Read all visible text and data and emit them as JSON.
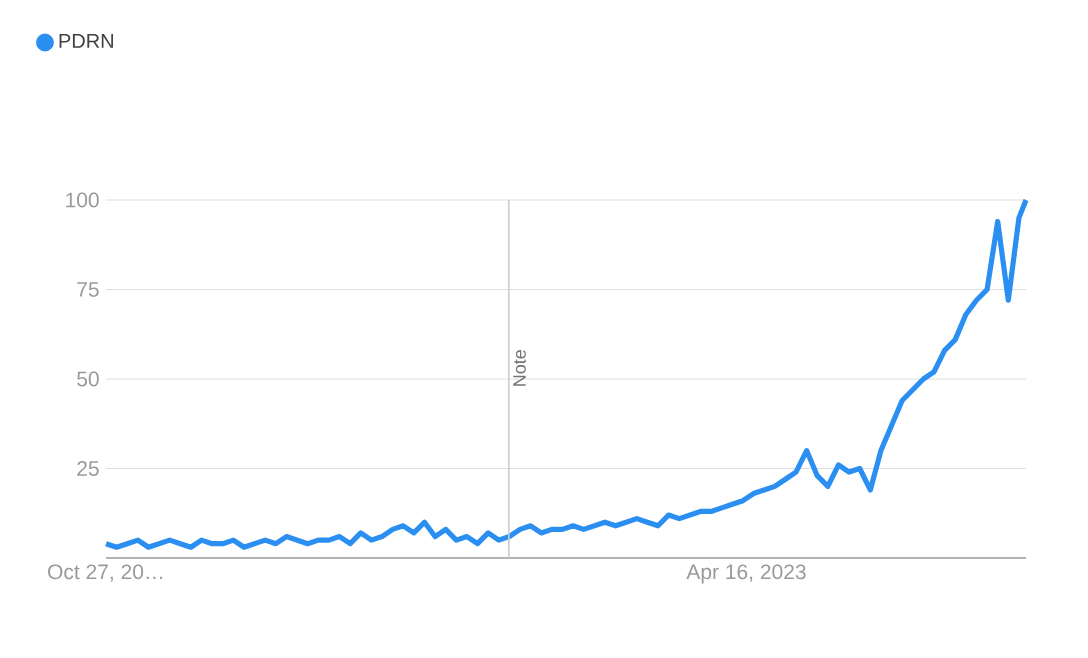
{
  "chart_data": {
    "type": "line",
    "x": [
      "2019-10-27",
      "2019-11-17",
      "2019-12-08",
      "2019-12-29",
      "2020-01-19",
      "2020-02-09",
      "2020-03-01",
      "2020-03-22",
      "2020-04-12",
      "2020-05-03",
      "2020-05-24",
      "2020-06-14",
      "2020-07-05",
      "2020-07-26",
      "2020-08-16",
      "2020-09-06",
      "2020-09-27",
      "2020-10-18",
      "2020-11-08",
      "2020-11-29",
      "2020-12-20",
      "2021-01-10",
      "2021-01-31",
      "2021-02-21",
      "2021-03-14",
      "2021-04-04",
      "2021-04-25",
      "2021-05-16",
      "2021-06-06",
      "2021-06-27",
      "2021-07-18",
      "2021-08-08",
      "2021-08-29",
      "2021-09-19",
      "2021-10-10",
      "2021-10-31",
      "2021-11-21",
      "2021-12-12",
      "2022-01-02",
      "2022-01-23",
      "2022-02-13",
      "2022-03-06",
      "2022-03-27",
      "2022-04-17",
      "2022-05-08",
      "2022-05-29",
      "2022-06-19",
      "2022-07-10",
      "2022-07-31",
      "2022-08-21",
      "2022-09-11",
      "2022-10-02",
      "2022-10-23",
      "2022-11-13",
      "2022-12-04",
      "2022-12-25",
      "2023-01-15",
      "2023-02-05",
      "2023-02-26",
      "2023-03-19",
      "2023-04-09",
      "2023-04-30",
      "2023-05-21",
      "2023-06-11",
      "2023-07-02",
      "2023-07-23",
      "2023-08-13",
      "2023-09-03",
      "2023-09-24",
      "2023-10-15",
      "2023-11-05",
      "2023-11-26",
      "2023-12-17",
      "2024-01-07",
      "2024-01-28",
      "2024-02-18",
      "2024-03-10",
      "2024-03-31",
      "2024-04-21",
      "2024-05-12",
      "2024-06-02",
      "2024-06-23",
      "2024-07-14",
      "2024-08-04",
      "2024-08-25",
      "2024-09-15",
      "2024-10-06",
      "2024-10-20"
    ],
    "series": [
      {
        "name": "PDRN",
        "color": "#2a8ff0",
        "values": [
          4,
          3,
          4,
          5,
          3,
          4,
          5,
          4,
          3,
          5,
          4,
          4,
          5,
          3,
          4,
          5,
          4,
          6,
          5,
          4,
          5,
          5,
          6,
          4,
          7,
          5,
          6,
          8,
          9,
          7,
          10,
          6,
          8,
          5,
          6,
          4,
          7,
          5,
          6,
          8,
          9,
          7,
          8,
          8,
          9,
          8,
          9,
          10,
          9,
          10,
          11,
          10,
          9,
          12,
          11,
          12,
          13,
          13,
          14,
          15,
          16,
          18,
          19,
          20,
          22,
          24,
          30,
          23,
          20,
          26,
          24,
          25,
          19,
          30,
          37,
          44,
          47,
          50,
          52,
          58,
          61,
          68,
          72,
          75,
          94,
          72,
          95,
          100
        ]
      }
    ],
    "xlim": [
      "2019-10-27",
      "2024-10-20"
    ],
    "xticks": [
      {
        "value": "2019-10-27",
        "label": "Oct 27, 20…"
      },
      {
        "value": "2023-04-16",
        "label": "Apr 16, 2023"
      }
    ],
    "ylim": [
      0,
      100
    ],
    "yticks": [
      25,
      50,
      75,
      100
    ],
    "grid": "y",
    "legend": "top left",
    "marker": "none",
    "line_style": "solid",
    "ref_lines": [
      {
        "axis": "x",
        "value": "2022-01-01",
        "label": "Note",
        "color": "#cccccc"
      }
    ]
  }
}
